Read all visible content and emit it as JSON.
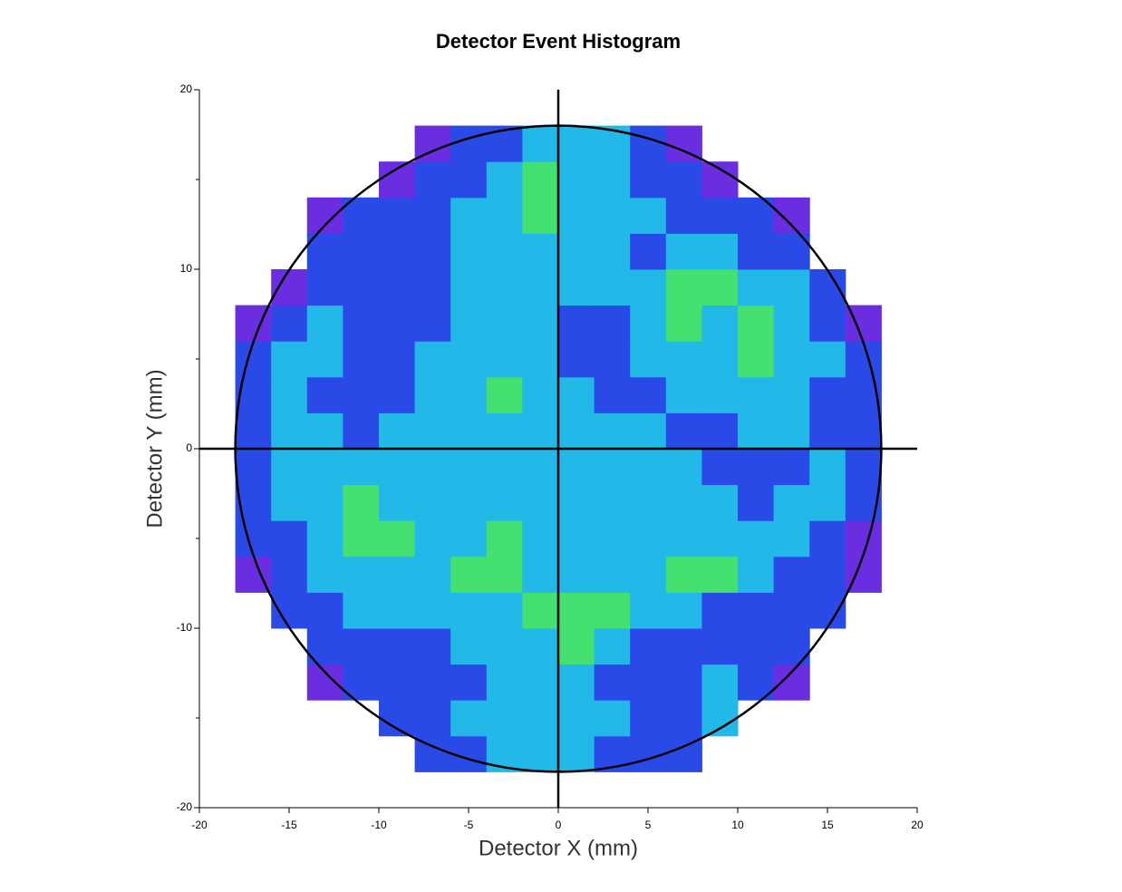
{
  "chart_data": {
    "type": "histogram2d",
    "title": "Detector Event Histogram",
    "x_label": "Detector X (mm)",
    "y_label": "Detector Y (mm)",
    "xlim": [
      -20,
      20
    ],
    "ylim": [
      -20,
      20
    ],
    "xticks": [
      -20,
      -15,
      -10,
      -5,
      0,
      5,
      10,
      15,
      20
    ],
    "yticks": [
      -20,
      -10,
      0,
      10,
      20
    ],
    "yminor": [
      -15,
      -5,
      5,
      15
    ],
    "xbins": [
      -18,
      -16,
      -14,
      -12,
      -10,
      -8,
      -6,
      -4,
      -2,
      0,
      2,
      4,
      6,
      8,
      10,
      12,
      14,
      16,
      18
    ],
    "ybins": [
      -18,
      -16,
      -14,
      -12,
      -10,
      -8,
      -6,
      -4,
      -2,
      0,
      2,
      4,
      6,
      8,
      10,
      12,
      14,
      16,
      18
    ],
    "colormap": [
      "#6a2ee0",
      "#2a4ae8",
      "#22b8e8",
      "#44e070"
    ],
    "values": [
      [
        null,
        null,
        null,
        null,
        null,
        2,
        2,
        3,
        3,
        3,
        2,
        2,
        2,
        null,
        null,
        null,
        null,
        null
      ],
      [
        null,
        null,
        null,
        null,
        2,
        2,
        3,
        3,
        3,
        3,
        3,
        2,
        2,
        3,
        null,
        null,
        null,
        null
      ],
      [
        null,
        null,
        1,
        2,
        2,
        2,
        2,
        3,
        3,
        3,
        2,
        2,
        2,
        3,
        2,
        1,
        null,
        null
      ],
      [
        null,
        null,
        2,
        2,
        2,
        2,
        3,
        3,
        3,
        4,
        3,
        2,
        2,
        2,
        2,
        2,
        null,
        null
      ],
      [
        null,
        2,
        2,
        3,
        3,
        3,
        3,
        3,
        4,
        4,
        4,
        3,
        3,
        2,
        2,
        2,
        2,
        null
      ],
      [
        1,
        2,
        3,
        3,
        3,
        3,
        4,
        4,
        3,
        3,
        3,
        3,
        4,
        4,
        3,
        2,
        2,
        1
      ],
      [
        2,
        2,
        3,
        4,
        4,
        3,
        3,
        4,
        3,
        3,
        3,
        3,
        3,
        3,
        3,
        3,
        2,
        1
      ],
      [
        2,
        3,
        3,
        4,
        3,
        3,
        3,
        3,
        3,
        3,
        3,
        3,
        3,
        3,
        2,
        3,
        3,
        2
      ],
      [
        2,
        3,
        3,
        3,
        3,
        3,
        3,
        3,
        3,
        3,
        3,
        3,
        3,
        2,
        2,
        2,
        3,
        2
      ],
      [
        2,
        3,
        3,
        2,
        3,
        3,
        3,
        3,
        3,
        3,
        3,
        3,
        2,
        2,
        3,
        3,
        2,
        2
      ],
      [
        2,
        3,
        2,
        2,
        2,
        3,
        3,
        4,
        3,
        3,
        2,
        2,
        3,
        3,
        3,
        3,
        2,
        2
      ],
      [
        2,
        3,
        3,
        2,
        2,
        3,
        3,
        3,
        3,
        2,
        2,
        3,
        3,
        3,
        4,
        3,
        3,
        2
      ],
      [
        1,
        2,
        3,
        2,
        2,
        2,
        3,
        3,
        3,
        2,
        2,
        3,
        4,
        3,
        4,
        3,
        2,
        1
      ],
      [
        null,
        1,
        2,
        2,
        2,
        2,
        3,
        3,
        3,
        3,
        3,
        3,
        4,
        4,
        3,
        3,
        2,
        null
      ],
      [
        null,
        null,
        2,
        2,
        2,
        2,
        3,
        3,
        3,
        3,
        3,
        2,
        3,
        3,
        2,
        2,
        null,
        null
      ],
      [
        null,
        null,
        1,
        2,
        2,
        2,
        3,
        3,
        4,
        3,
        3,
        3,
        2,
        2,
        2,
        1,
        null,
        null
      ],
      [
        null,
        null,
        null,
        null,
        1,
        2,
        2,
        3,
        4,
        3,
        3,
        2,
        2,
        1,
        null,
        null,
        null,
        null
      ],
      [
        null,
        null,
        null,
        null,
        null,
        1,
        2,
        2,
        3,
        3,
        3,
        2,
        1,
        null,
        null,
        null,
        null,
        null
      ]
    ],
    "circle_radius": 18,
    "crosshair": [
      0,
      0
    ]
  }
}
